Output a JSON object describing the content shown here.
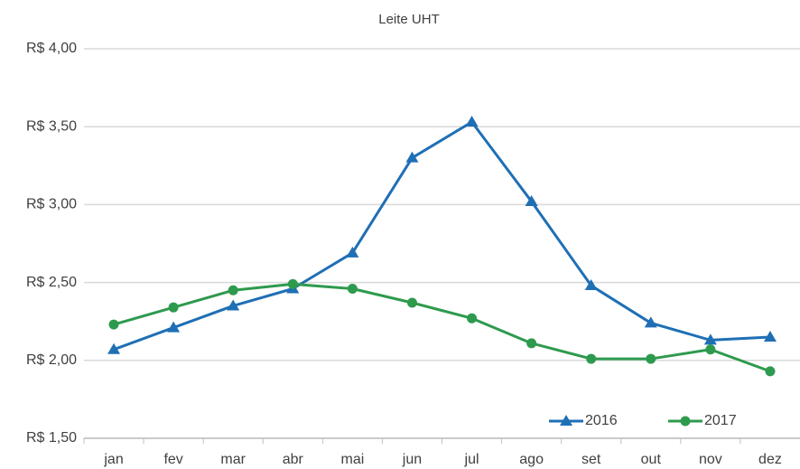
{
  "chart_data": {
    "type": "line",
    "title": "Leite UHT",
    "categories": [
      "jan",
      "fev",
      "mar",
      "abr",
      "mai",
      "jun",
      "jul",
      "ago",
      "set",
      "out",
      "nov",
      "dez"
    ],
    "series": [
      {
        "name": "2016",
        "color": "#1f6fb5",
        "marker": "triangle",
        "values": [
          2.07,
          2.21,
          2.35,
          2.46,
          2.69,
          3.3,
          3.53,
          3.02,
          2.48,
          2.24,
          2.13,
          2.15
        ]
      },
      {
        "name": "2017",
        "color": "#2e9a4e",
        "marker": "circle",
        "values": [
          2.23,
          2.34,
          2.45,
          2.49,
          2.46,
          2.37,
          2.27,
          2.11,
          2.01,
          2.01,
          2.07,
          1.93
        ]
      }
    ],
    "ylim": [
      1.5,
      4.0
    ],
    "yticks": [
      {
        "value": 1.5,
        "label": "R$ 1,50"
      },
      {
        "value": 2.0,
        "label": "R$ 2,00"
      },
      {
        "value": 2.5,
        "label": "R$ 2,50"
      },
      {
        "value": 3.0,
        "label": "R$ 3,00"
      },
      {
        "value": 3.5,
        "label": "R$ 3,50"
      },
      {
        "value": 4.0,
        "label": "R$ 4,00"
      }
    ],
    "grid": true,
    "legend": "lower right"
  }
}
